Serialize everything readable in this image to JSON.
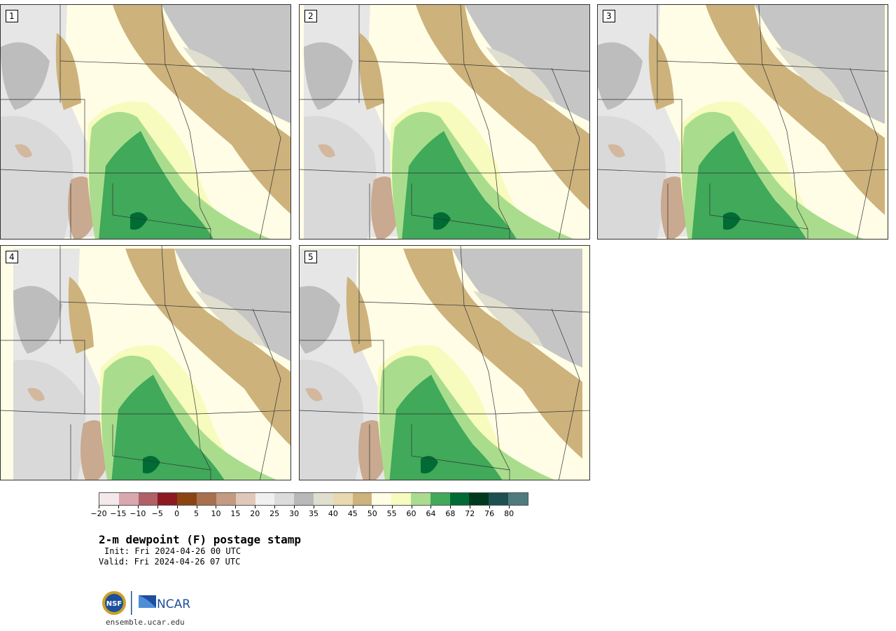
{
  "panels": [
    {
      "label": "1"
    },
    {
      "label": "2"
    },
    {
      "label": "3"
    },
    {
      "label": "4"
    },
    {
      "label": "5"
    }
  ],
  "colorbar": {
    "colors": [
      "#f4e9ea",
      "#d9a7ae",
      "#b06066",
      "#8c1a22",
      "#8b4513",
      "#a9704d",
      "#c49a80",
      "#e0c8b8",
      "#f0f0f0",
      "#dcdcdc",
      "#b9b9b9",
      "#e0dfcf",
      "#e8d9b0",
      "#cdb27c",
      "#fffde6",
      "#f7fbbd",
      "#a9dd8d",
      "#40a95a",
      "#006b35",
      "#00391d",
      "#1c5052",
      "#4f7a80"
    ],
    "tick_labels": [
      "−20",
      "−15",
      "−10",
      "−5",
      "0",
      "5",
      "10",
      "15",
      "20",
      "25",
      "30",
      "35",
      "40",
      "45",
      "50",
      "55",
      "60",
      "64",
      "68",
      "72",
      "76",
      "80"
    ]
  },
  "title": "2-m dewpoint (F) postage stamp",
  "init": "Init: Fri 2024-04-26 00 UTC",
  "valid": "Valid: Fri 2024-04-26 07 UTC",
  "footer": {
    "nsf_logo_text": "NSF",
    "ncar_logo_text": "NCAR",
    "url": "ensemble.ucar.edu"
  }
}
